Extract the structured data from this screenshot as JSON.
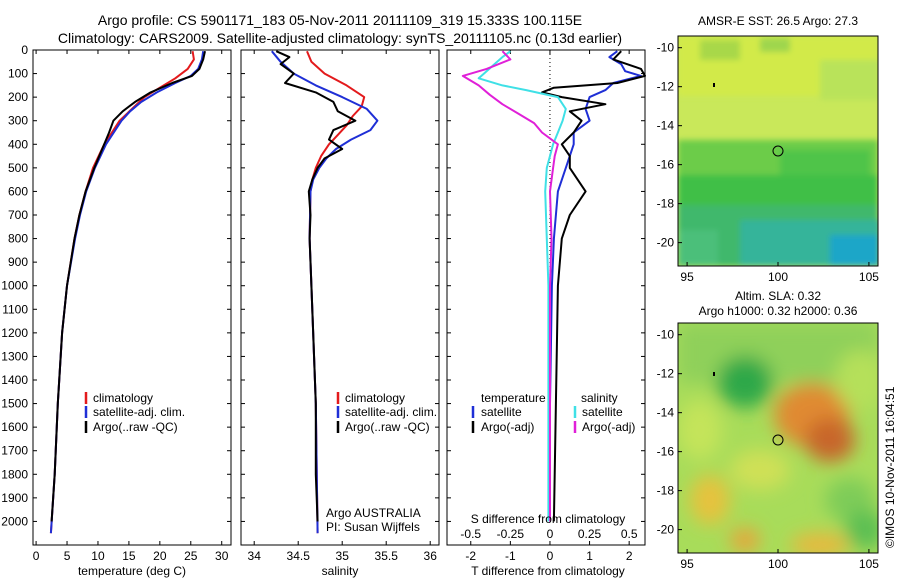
{
  "header": {
    "line1": "Argo profile: CS 5901171_183 05-Nov-2011 20111109_319 15.333S 100.115E",
    "line2": "Climatology: CARS2009. Satellite-adjusted climatology: synTS_20111105.nc (0.13d earlier)"
  },
  "colors": {
    "climatology": "#e31a1c",
    "satellite": "#1f2fd6",
    "argo": "#000000",
    "sal_satellite": "#3fe0e6",
    "sal_argo": "#e020d8"
  },
  "panels": {
    "temperature": {
      "xlabel": "temperature (deg C)",
      "legend": [
        "climatology",
        "satellite-adj. clim.",
        "Argo(..raw -QC)"
      ]
    },
    "salinity": {
      "xlabel": "salinity",
      "legend": [
        "climatology",
        "satellite-adj. clim.",
        "Argo(..raw -QC)"
      ],
      "note1": "Argo AUSTRALIA",
      "note2": "PI: Susan Wijffels"
    },
    "difference": {
      "top_label": "S difference from climatology",
      "bottom_label": "T difference from climatology",
      "legend_head_t": "temperature",
      "legend_head_s": "salinity",
      "legend_t": [
        "satellite",
        "Argo(-adj)"
      ],
      "legend_s": [
        "satellite",
        "Argo(-adj)"
      ]
    },
    "sst_map": {
      "title": "AMSR-E SST: 26.5  Argo: 27.3",
      "x_ticks": [
        "95",
        "100",
        "105"
      ],
      "y_ticks": [
        "-10",
        "-12",
        "-14",
        "-16",
        "-18",
        "-20"
      ]
    },
    "sla_map": {
      "title1": "Altim. SLA: 0.32",
      "title2": "Argo h1000: 0.32  h2000: 0.36",
      "x_ticks": [
        "95",
        "100",
        "105"
      ],
      "y_ticks": [
        "-10",
        "-12",
        "-14",
        "-16",
        "-18",
        "-20"
      ]
    }
  },
  "footer": {
    "credit": "©IMOS 10-Nov-2011 16:04:51"
  },
  "chart_data": [
    {
      "type": "line",
      "name": "temperature",
      "xlabel": "temperature (deg C)",
      "ylabel": "",
      "xlim": [
        -0.5,
        31.5
      ],
      "ylim": [
        2100,
        0
      ],
      "x_ticks": [
        0,
        5,
        10,
        15,
        20,
        25,
        30
      ],
      "y_ticks": [
        0,
        100,
        200,
        300,
        400,
        500,
        600,
        700,
        800,
        900,
        1000,
        1100,
        1200,
        1300,
        1400,
        1500,
        1600,
        1700,
        1800,
        1900,
        2000
      ],
      "series": [
        {
          "name": "climatology",
          "color": "#e31a1c",
          "depth": [
            5,
            40,
            80,
            120,
            160,
            200,
            250,
            300,
            400,
            500,
            600,
            700,
            800,
            1000,
            1200,
            1500,
            1800,
            2050
          ],
          "values": [
            25.3,
            25.5,
            24.5,
            22.5,
            20.0,
            17.5,
            15.5,
            13.5,
            11.0,
            9.2,
            8.0,
            7.0,
            6.2,
            5.0,
            4.2,
            3.5,
            3.0,
            2.4
          ]
        },
        {
          "name": "satellite-adj. clim.",
          "color": "#1f2fd6",
          "depth": [
            5,
            40,
            80,
            110,
            140,
            180,
            220,
            260,
            300,
            400,
            500,
            600,
            700,
            800,
            1000,
            1200,
            1500,
            1800,
            2050
          ],
          "values": [
            27.0,
            26.8,
            26.2,
            25.0,
            22.5,
            19.5,
            17.0,
            15.2,
            13.8,
            11.3,
            9.5,
            8.1,
            7.1,
            6.3,
            5.0,
            4.2,
            3.5,
            3.0,
            2.4
          ]
        },
        {
          "name": "Argo(..raw -QC)",
          "color": "#000000",
          "depth": [
            5,
            40,
            80,
            110,
            140,
            180,
            220,
            260,
            300,
            350,
            400,
            500,
            600,
            700,
            800,
            1000,
            1200,
            1500,
            1800,
            2000
          ],
          "values": [
            27.3,
            27.0,
            26.4,
            25.2,
            22.0,
            18.5,
            16.0,
            14.0,
            12.5,
            11.8,
            11.0,
            9.4,
            8.0,
            7.0,
            6.2,
            5.0,
            4.2,
            3.5,
            3.0,
            2.5
          ]
        }
      ]
    },
    {
      "type": "line",
      "name": "salinity",
      "xlabel": "salinity",
      "ylabel": "",
      "xlim": [
        33.85,
        36.1
      ],
      "ylim": [
        2100,
        0
      ],
      "x_ticks": [
        34,
        34.5,
        35,
        35.5,
        36
      ],
      "series": [
        {
          "name": "climatology",
          "color": "#e31a1c",
          "depth": [
            5,
            50,
            100,
            150,
            200,
            240,
            280,
            320,
            360,
            400,
            450,
            500,
            550,
            600,
            800,
            1000,
            1500,
            2050
          ],
          "values": [
            34.6,
            34.65,
            34.8,
            35.05,
            35.25,
            35.22,
            35.12,
            35.05,
            34.95,
            34.85,
            34.76,
            34.7,
            34.66,
            34.64,
            34.63,
            34.65,
            34.7,
            34.72
          ]
        },
        {
          "name": "satellite-adj. clim.",
          "color": "#1f2fd6",
          "depth": [
            5,
            50,
            100,
            150,
            200,
            250,
            300,
            340,
            380,
            420,
            460,
            500,
            550,
            600,
            800,
            1000,
            1500,
            2050
          ],
          "values": [
            34.2,
            34.3,
            34.45,
            34.7,
            35.0,
            35.28,
            35.4,
            35.32,
            35.1,
            34.93,
            34.82,
            34.74,
            34.67,
            34.64,
            34.63,
            34.65,
            34.7,
            34.72
          ]
        },
        {
          "name": "Argo(..raw -QC)",
          "color": "#000000",
          "depth": [
            5,
            30,
            60,
            100,
            140,
            180,
            220,
            260,
            300,
            340,
            380,
            420,
            460,
            500,
            550,
            600,
            700,
            800,
            1000,
            1200,
            1500,
            1800,
            2000
          ],
          "values": [
            34.25,
            34.4,
            34.3,
            34.45,
            34.35,
            34.7,
            34.9,
            34.95,
            35.15,
            34.9,
            34.85,
            35.0,
            34.8,
            34.72,
            34.66,
            34.62,
            34.64,
            34.63,
            34.65,
            34.67,
            34.7,
            34.7,
            34.72
          ]
        }
      ]
    },
    {
      "type": "line",
      "name": "difference",
      "xlabel": "T difference from climatology",
      "x2label": "S difference from climatology",
      "xlim": [
        -2.6,
        2.4
      ],
      "x2lim": [
        -0.65,
        0.6
      ],
      "ylim": [
        2100,
        0
      ],
      "x_ticks": [
        -2,
        -1,
        0,
        1,
        2
      ],
      "x2_ticks": [
        -0.5,
        -0.25,
        0,
        0.25,
        0.5
      ],
      "zero_line": 0,
      "series": [
        {
          "name": "temperature satellite",
          "color": "#1f2fd6",
          "axis": "T",
          "depth": [
            5,
            30,
            60,
            90,
            110,
            140,
            170,
            200,
            250,
            300,
            350,
            400,
            500,
            600,
            800,
            1000,
            1500,
            2000
          ],
          "values": [
            1.7,
            1.5,
            1.8,
            1.9,
            2.3,
            1.6,
            1.4,
            1.0,
            0.9,
            1.0,
            0.6,
            0.6,
            0.4,
            0.2,
            0.1,
            0.05,
            0.0,
            0.0
          ]
        },
        {
          "name": "temperature Argo(-adj)",
          "color": "#000000",
          "axis": "T",
          "depth": [
            5,
            40,
            80,
            110,
            140,
            160,
            180,
            200,
            230,
            260,
            300,
            350,
            400,
            450,
            500,
            600,
            700,
            800,
            1000,
            1500,
            2000
          ],
          "values": [
            1.8,
            1.6,
            2.3,
            2.4,
            1.7,
            0.1,
            -0.2,
            0.3,
            1.4,
            0.5,
            0.8,
            0.6,
            0.3,
            0.5,
            0.5,
            0.9,
            0.5,
            0.3,
            0.2,
            0.15,
            0.1
          ]
        },
        {
          "name": "salinity satellite",
          "color": "#3fe0e6",
          "axis": "S",
          "depth": [
            5,
            30,
            60,
            90,
            120,
            150,
            170,
            200,
            250,
            300,
            350,
            400,
            500,
            600,
            800,
            1000,
            1500,
            2000
          ],
          "values": [
            -0.25,
            -0.3,
            -0.35,
            -0.4,
            -0.45,
            -0.3,
            -0.15,
            0.05,
            0.1,
            0.08,
            0.05,
            0.02,
            -0.02,
            -0.03,
            -0.02,
            -0.01,
            -0.01,
            -0.01
          ]
        },
        {
          "name": "salinity Argo(-adj)",
          "color": "#e020d8",
          "axis": "S",
          "depth": [
            5,
            40,
            80,
            110,
            150,
            190,
            230,
            270,
            310,
            350,
            400,
            450,
            500,
            600,
            800,
            1000,
            1500,
            2000
          ],
          "values": [
            -0.3,
            -0.25,
            -0.4,
            -0.55,
            -0.45,
            -0.38,
            -0.3,
            -0.2,
            -0.1,
            -0.05,
            0.05,
            0.03,
            0.02,
            0.0,
            0.01,
            0.0,
            0.0,
            0.0
          ]
        }
      ]
    },
    {
      "type": "heatmap",
      "name": "AMSR-E SST",
      "title": "AMSR-E SST: 26.5  Argo: 27.3",
      "xlim": [
        94.5,
        105.5
      ],
      "ylim": [
        -21.2,
        -9.4
      ],
      "x_ticks": [
        95,
        100,
        105
      ],
      "y_ticks": [
        -10,
        -12,
        -14,
        -16,
        -18,
        -20
      ],
      "float_position": {
        "lon": 100.115,
        "lat": -15.333
      }
    },
    {
      "type": "heatmap",
      "name": "Altim. SLA",
      "title": "Altim. SLA: 0.32",
      "subtitle": "Argo h1000: 0.32  h2000: 0.36",
      "xlim": [
        94.5,
        105.5
      ],
      "ylim": [
        -21.2,
        -9.4
      ],
      "x_ticks": [
        95,
        100,
        105
      ],
      "y_ticks": [
        -10,
        -12,
        -14,
        -16,
        -18,
        -20
      ],
      "float_position": {
        "lon": 100.115,
        "lat": -15.333
      }
    }
  ]
}
